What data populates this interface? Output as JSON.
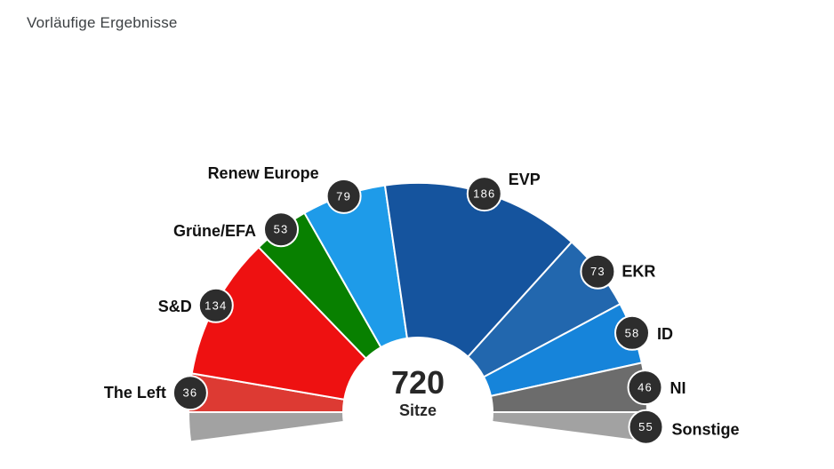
{
  "header": {
    "title": "Vorläufige Ergebnisse"
  },
  "chart_data": {
    "type": "hemicycle",
    "title": "Vorläufige Ergebnisse",
    "total_seats": 720,
    "center_label": {
      "value": "720",
      "unit": "Sitze"
    },
    "legend_position": "around-arc",
    "badge_color": "#2d2d2d",
    "badge_text_color": "#ffffff",
    "divider_color": "#ffffff",
    "groups": [
      {
        "id": "the-left",
        "label": "The Left",
        "seats": 36,
        "color": "#dd3a33"
      },
      {
        "id": "s-d",
        "label": "S&D",
        "seats": 134,
        "color": "#ee1111"
      },
      {
        "id": "gruene-efa",
        "label": "Grüne/EFA",
        "seats": 53,
        "color": "#088000"
      },
      {
        "id": "renew-europe",
        "label": "Renew Europe",
        "seats": 79,
        "color": "#1e9be9"
      },
      {
        "id": "evp",
        "label": "EVP",
        "seats": 186,
        "color": "#15549e"
      },
      {
        "id": "ekr",
        "label": "EKR",
        "seats": 73,
        "color": "#2267ae"
      },
      {
        "id": "id",
        "label": "ID",
        "seats": 58,
        "color": "#1684da"
      },
      {
        "id": "ni",
        "label": "NI",
        "seats": 46,
        "color": "#6c6c6c"
      },
      {
        "id": "sonstige",
        "label": "Sonstige",
        "seats": 55,
        "color": "#a2a2a2",
        "split_both_ends": true
      }
    ]
  }
}
